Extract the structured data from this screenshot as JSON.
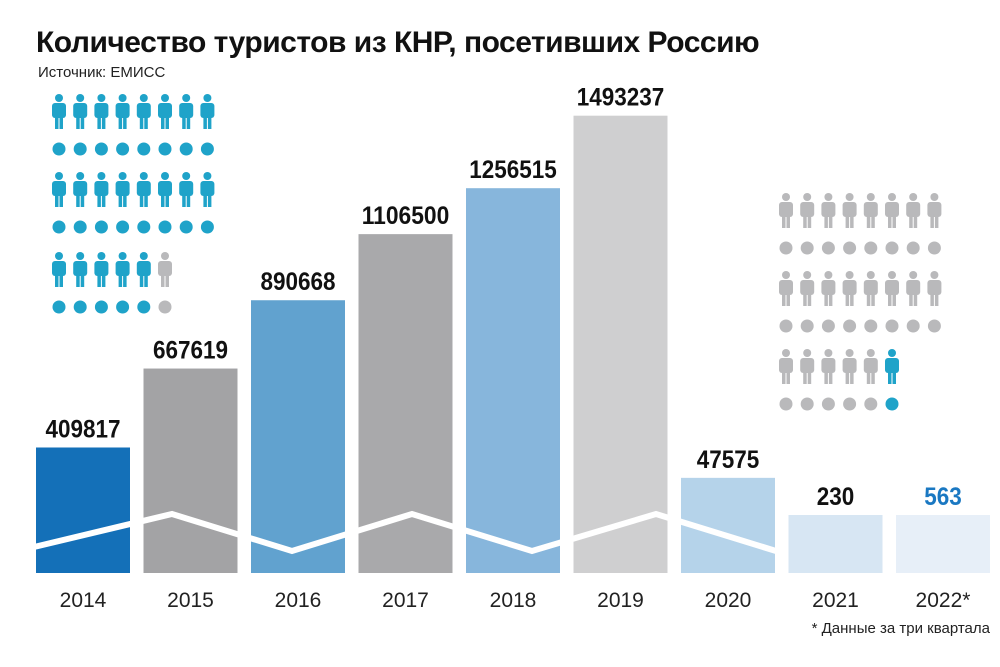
{
  "title": "Количество туристов из КНР, посетивших Россию",
  "source": "Источник: ЕМИСС",
  "footnote": "* Данные за три квартала",
  "chart_data": {
    "type": "bar",
    "categories": [
      "2014",
      "2015",
      "2016",
      "2017",
      "2018",
      "2019",
      "2020",
      "2021",
      "2022*"
    ],
    "values": [
      409817,
      667619,
      890668,
      1106500,
      1256515,
      1493237,
      47575,
      230,
      563
    ],
    "value_labels": [
      "409817",
      "667619",
      "890668",
      "1106500",
      "1256515",
      "1493237",
      "47575",
      "230",
      "563"
    ],
    "bar_colors": [
      "#1470b8",
      "#a3a3a5",
      "#61a2cf",
      "#a9a9ab",
      "#87b6dc",
      "#cfcfd0",
      "#b5d3ea",
      "#d7e6f3",
      "#e7eff8"
    ],
    "label_colors": [
      "#111111",
      "#111111",
      "#111111",
      "#111111",
      "#111111",
      "#111111",
      "#111111",
      "#111111",
      "#1a78c2"
    ],
    "axis_break": true,
    "pictogram_colors": {
      "highlight": "#1fa3c9",
      "muted": "#b9b9bb"
    }
  }
}
